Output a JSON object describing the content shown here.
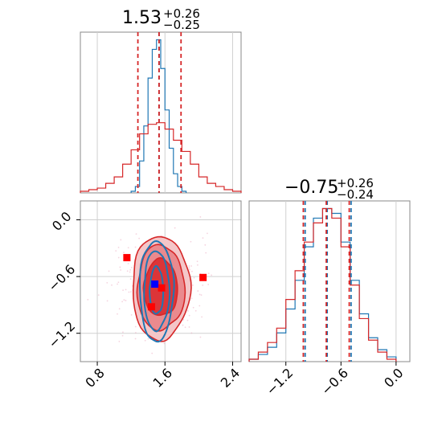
{
  "chart_data": [
    {
      "type": "histogram",
      "panel": "marginal-x",
      "title": {
        "value": "1.53",
        "upper": "+0.26",
        "lower": "−0.25"
      },
      "xlim": [
        0.6,
        2.5
      ],
      "grid": true,
      "series": [
        {
          "color": "#1f77b4",
          "bins": [
            1.2,
            1.25,
            1.3,
            1.35,
            1.4,
            1.45,
            1.5,
            1.55,
            1.6,
            1.65,
            1.7,
            1.75,
            1.8,
            1.85
          ],
          "counts": [
            1,
            4,
            20,
            42,
            72,
            90,
            96,
            78,
            52,
            28,
            12,
            4,
            1
          ],
          "quantiles": [
            1.53
          ]
        },
        {
          "color": "#d62728",
          "bins": [
            0.6,
            0.7,
            0.8,
            0.9,
            1.0,
            1.1,
            1.2,
            1.3,
            1.4,
            1.5,
            1.6,
            1.7,
            1.8,
            1.9,
            2.0,
            2.1,
            2.2,
            2.3,
            2.4,
            2.5
          ],
          "counts": [
            1,
            2,
            3,
            6,
            10,
            18,
            27,
            37,
            43,
            44,
            40,
            33,
            26,
            18,
            10,
            6,
            4,
            2,
            1
          ],
          "quantiles": [
            1.28,
            1.53,
            1.79
          ]
        }
      ]
    },
    {
      "type": "histogram",
      "panel": "marginal-y",
      "title": {
        "value": "−0.75",
        "upper": "+0.26",
        "lower": "−0.24"
      },
      "xlim": [
        -1.6,
        0.15
      ],
      "xticks": [
        "−1.2",
        "−0.6",
        "0.0"
      ],
      "xtick_values": [
        -1.2,
        -0.6,
        0.0
      ],
      "grid": true,
      "series": [
        {
          "color": "#1f77b4",
          "bins": [
            -1.6,
            -1.5,
            -1.4,
            -1.3,
            -1.2,
            -1.1,
            -1.0,
            -0.9,
            -0.8,
            -0.7,
            -0.6,
            -0.5,
            -0.4,
            -0.3,
            -0.2,
            -0.1,
            0.0
          ],
          "counts": [
            1,
            3,
            6,
            12,
            22,
            34,
            48,
            60,
            64,
            62,
            50,
            34,
            20,
            10,
            5,
            2
          ],
          "quantiles": [
            -0.99,
            -0.75,
            -0.49
          ]
        },
        {
          "color": "#d62728",
          "bins": [
            -1.6,
            -1.5,
            -1.4,
            -1.3,
            -1.2,
            -1.1,
            -1.0,
            -0.9,
            -0.8,
            -0.7,
            -0.6,
            -0.5,
            -0.4,
            -0.3,
            -0.2,
            -0.1,
            0.0
          ],
          "counts": [
            1,
            4,
            8,
            14,
            26,
            38,
            50,
            58,
            64,
            60,
            48,
            32,
            18,
            9,
            4,
            1
          ],
          "quantiles": [
            -1.01,
            -0.76,
            -0.51
          ]
        }
      ]
    },
    {
      "type": "contour",
      "panel": "joint",
      "xlim": [
        0.6,
        2.5
      ],
      "ylim": [
        -1.5,
        0.2
      ],
      "xticks": [
        "0.8",
        "1.6",
        "2.4"
      ],
      "xtick_values": [
        0.8,
        1.6,
        2.4
      ],
      "yticks": [
        "0.0",
        "−0.6",
        "−1.2"
      ],
      "ytick_values": [
        0.0,
        -0.6,
        -1.2
      ],
      "grid": true,
      "series": [
        {
          "color": "#d62728",
          "center": [
            1.55,
            -0.72
          ],
          "levels_sigma": [
            {
              "rx": 0.34,
              "ry": 0.55
            },
            {
              "rx": 0.28,
              "ry": 0.45
            },
            {
              "rx": 0.2,
              "ry": 0.3
            }
          ],
          "markers": [
            {
              "x": 1.15,
              "y": -0.4
            },
            {
              "x": 1.56,
              "y": -0.72
            },
            {
              "x": 1.44,
              "y": -0.92
            },
            {
              "x": 2.05,
              "y": -0.61
            }
          ]
        },
        {
          "color": "#1f77b4",
          "center": [
            1.5,
            -0.75
          ],
          "levels_sigma": [
            {
              "rx": 0.2,
              "ry": 0.53
            },
            {
              "rx": 0.15,
              "ry": 0.42
            },
            {
              "rx": 0.08,
              "ry": 0.25
            }
          ],
          "markers": [
            {
              "x": 1.48,
              "y": -0.68
            }
          ]
        }
      ]
    }
  ]
}
